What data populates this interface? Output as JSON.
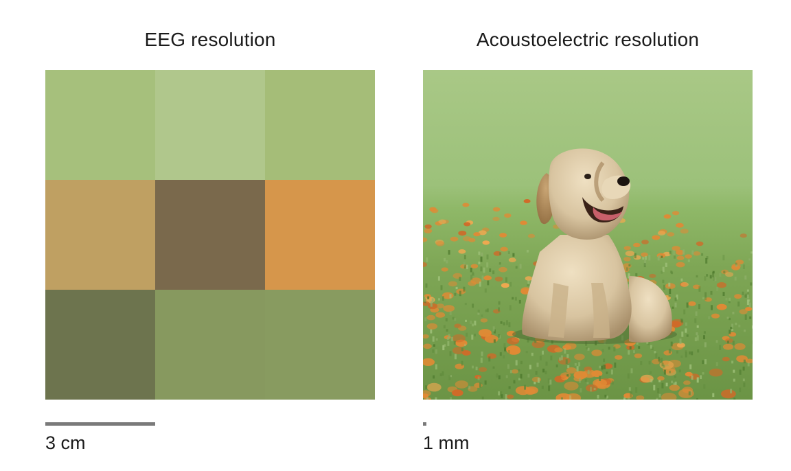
{
  "panels": {
    "left": {
      "title": "EEG resolution",
      "scale_label": "3 cm",
      "grid_colors": [
        [
          "#a6c07c",
          "#b0c78c",
          "#a5bd78"
        ],
        [
          "#bfa062",
          "#7a694c",
          "#d6964b"
        ],
        [
          "#6d744e",
          "#87995f",
          "#889b60"
        ]
      ]
    },
    "right": {
      "title": "Acoustoelectric resolution",
      "scale_label": "1 mm",
      "image_subject": "puppy-sitting-in-grass-with-orange-flowers"
    }
  },
  "colors": {
    "scale_bar": "#7a7a7a",
    "grass_light": "#b5cf95",
    "grass_mid": "#8fb06a",
    "grass_dark": "#5f8a3c",
    "flower_orange": "#e08a35",
    "dog_fur": "#d8c4a0",
    "dog_shadow": "#a88f6a"
  }
}
